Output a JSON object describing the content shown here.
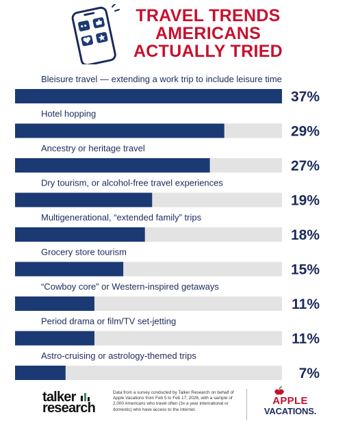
{
  "title_lines": [
    "TRAVEL TRENDS",
    "AMERICANS",
    "ACTUALLY TRIED"
  ],
  "colors": {
    "title": "#c8102e",
    "bar": "#1b3a73",
    "track": "#e3e3e3",
    "text": "#1b2a5c"
  },
  "illustration": {
    "icon": "phone-with-social-icons-icon"
  },
  "chart_data": {
    "type": "bar",
    "orientation": "horizontal",
    "title": "TRAVEL TRENDS AMERICANS ACTUALLY TRIED",
    "categories": [
      "Bleisure travel — extending a work trip to include leisure time",
      "Hotel hopping",
      "Ancestry or heritage travel",
      "Dry tourism, or alcohol-free travel experiences",
      "Multigenerational, “extended family” trips",
      "Grocery store tourism",
      "“Cowboy core” or Western-inspired getaways",
      "Period drama or film/TV set-jetting",
      "Astro-cruising or astrology-themed trips"
    ],
    "values": [
      37,
      29,
      27,
      19,
      18,
      15,
      11,
      11,
      7
    ],
    "value_labels": [
      "37%",
      "29%",
      "27%",
      "19%",
      "18%",
      "15%",
      "11%",
      "11%",
      "7%"
    ],
    "xlim": [
      0,
      37
    ],
    "unit": "%",
    "grid": false,
    "legend": "none"
  },
  "footer": {
    "brand_left_lines": [
      "talker",
      "research"
    ],
    "note": "Data from a survey conducted by Talker Research on behalf of Apple Vacations from Feb 5 to Feb 17, 2026, with a sample of 2,000 Americans who travel often (3x a year international or domestic) who have access to the internet.",
    "brand_right_lines": [
      "APPLE",
      "VACATIONS."
    ]
  }
}
